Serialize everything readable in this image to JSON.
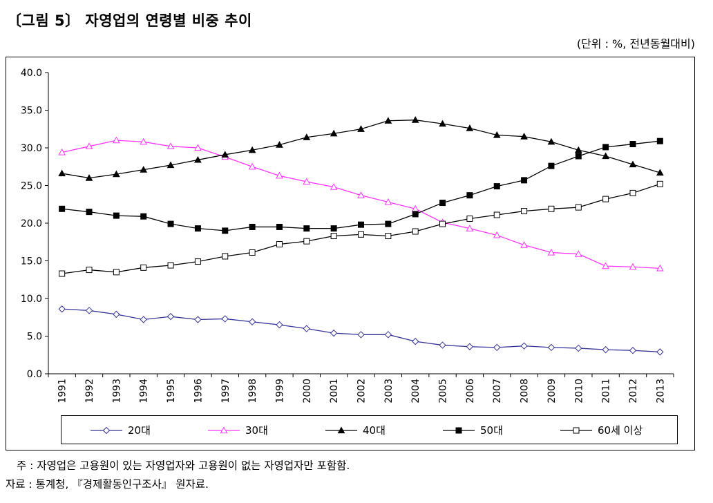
{
  "header": {
    "title": "〔그림 5〕 자영업의 연령별 비중 추이",
    "unit": "(단위 : %,  전년동월대비)"
  },
  "footer": {
    "note": "주 : 자영업은 고용원이 있는 자영업자와 고용원이 없는 자영업자만 포함함.",
    "source": "자료 : 통계청, 『경제활동인구조사』 원자료."
  },
  "chart_data": {
    "type": "line",
    "title": "〔그림 5〕 자영업의 연령별 비중 추이",
    "xlabel": "",
    "ylabel": "",
    "ylim": [
      0,
      40
    ],
    "yticks": [
      "0.0",
      "5.0",
      "10.0",
      "15.0",
      "20.0",
      "25.0",
      "30.0",
      "35.0",
      "40.0"
    ],
    "grid": false,
    "legend_position": "bottom",
    "categories": [
      "1991",
      "1992",
      "1993",
      "1994",
      "1995",
      "1996",
      "1997",
      "1998",
      "1999",
      "2000",
      "2001",
      "2002",
      "2003",
      "2004",
      "2005",
      "2006",
      "2007",
      "2008",
      "2009",
      "2010",
      "2011",
      "2012",
      "2013"
    ],
    "series": [
      {
        "name": "20대",
        "color": "#333399",
        "marker": "diamond-open",
        "values": [
          8.6,
          8.4,
          7.9,
          7.2,
          7.6,
          7.2,
          7.3,
          6.9,
          6.5,
          6.0,
          5.4,
          5.2,
          5.2,
          4.3,
          3.8,
          3.6,
          3.5,
          3.7,
          3.5,
          3.4,
          3.2,
          3.1,
          2.9
        ]
      },
      {
        "name": "30대",
        "color": "#ff33ff",
        "marker": "triangle-open",
        "values": [
          29.4,
          30.2,
          31.0,
          30.8,
          30.2,
          30.0,
          28.8,
          27.5,
          26.3,
          25.5,
          24.8,
          23.7,
          22.8,
          21.9,
          20.1,
          19.3,
          18.4,
          17.1,
          16.1,
          15.9,
          14.3,
          14.2,
          14.0
        ]
      },
      {
        "name": "40대",
        "color": "#000000",
        "marker": "triangle-filled",
        "values": [
          26.6,
          26.0,
          26.5,
          27.1,
          27.7,
          28.4,
          29.1,
          29.7,
          30.4,
          31.4,
          31.9,
          32.5,
          33.6,
          33.7,
          33.2,
          32.6,
          31.7,
          31.5,
          30.8,
          29.7,
          28.9,
          27.8,
          26.7
        ]
      },
      {
        "name": "50대",
        "color": "#000000",
        "marker": "square-filled",
        "values": [
          21.9,
          21.5,
          21.0,
          20.9,
          19.9,
          19.3,
          19.0,
          19.5,
          19.5,
          19.3,
          19.3,
          19.8,
          19.9,
          21.2,
          22.7,
          23.7,
          24.9,
          25.7,
          27.6,
          28.9,
          30.1,
          30.5,
          30.9
        ]
      },
      {
        "name": "60세 이상",
        "color": "#000000",
        "marker": "square-open",
        "values": [
          13.3,
          13.8,
          13.5,
          14.1,
          14.4,
          14.9,
          15.6,
          16.1,
          17.2,
          17.6,
          18.3,
          18.5,
          18.3,
          18.9,
          19.9,
          20.6,
          21.1,
          21.6,
          21.9,
          22.1,
          23.2,
          24.0,
          25.2
        ]
      }
    ]
  }
}
